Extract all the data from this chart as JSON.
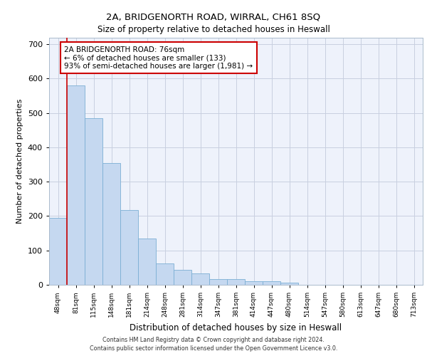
{
  "title": "2A, BRIDGENORTH ROAD, WIRRAL, CH61 8SQ",
  "subtitle": "Size of property relative to detached houses in Heswall",
  "xlabel": "Distribution of detached houses by size in Heswall",
  "ylabel": "Number of detached properties",
  "categories": [
    "48sqm",
    "81sqm",
    "115sqm",
    "148sqm",
    "181sqm",
    "214sqm",
    "248sqm",
    "281sqm",
    "314sqm",
    "347sqm",
    "381sqm",
    "414sqm",
    "447sqm",
    "480sqm",
    "514sqm",
    "547sqm",
    "580sqm",
    "613sqm",
    "647sqm",
    "680sqm",
    "713sqm"
  ],
  "values": [
    195,
    580,
    485,
    355,
    218,
    135,
    63,
    44,
    33,
    16,
    16,
    10,
    10,
    6,
    0,
    0,
    0,
    0,
    0,
    0,
    0
  ],
  "bar_color": "#c5d8f0",
  "bar_edge_color": "#7bafd4",
  "background_color": "#eef2fb",
  "grid_color": "#c8cfe0",
  "annotation_text": "2A BRIDGENORTH ROAD: 76sqm\n← 6% of detached houses are smaller (133)\n93% of semi-detached houses are larger (1,981) →",
  "annotation_box_facecolor": "#ffffff",
  "annotation_box_edgecolor": "#cc0000",
  "vline_x": 0.5,
  "vline_color": "#cc0000",
  "ylim": [
    0,
    720
  ],
  "yticks": [
    0,
    100,
    200,
    300,
    400,
    500,
    600,
    700
  ],
  "footer_line1": "Contains HM Land Registry data © Crown copyright and database right 2024.",
  "footer_line2": "Contains public sector information licensed under the Open Government Licence v3.0."
}
